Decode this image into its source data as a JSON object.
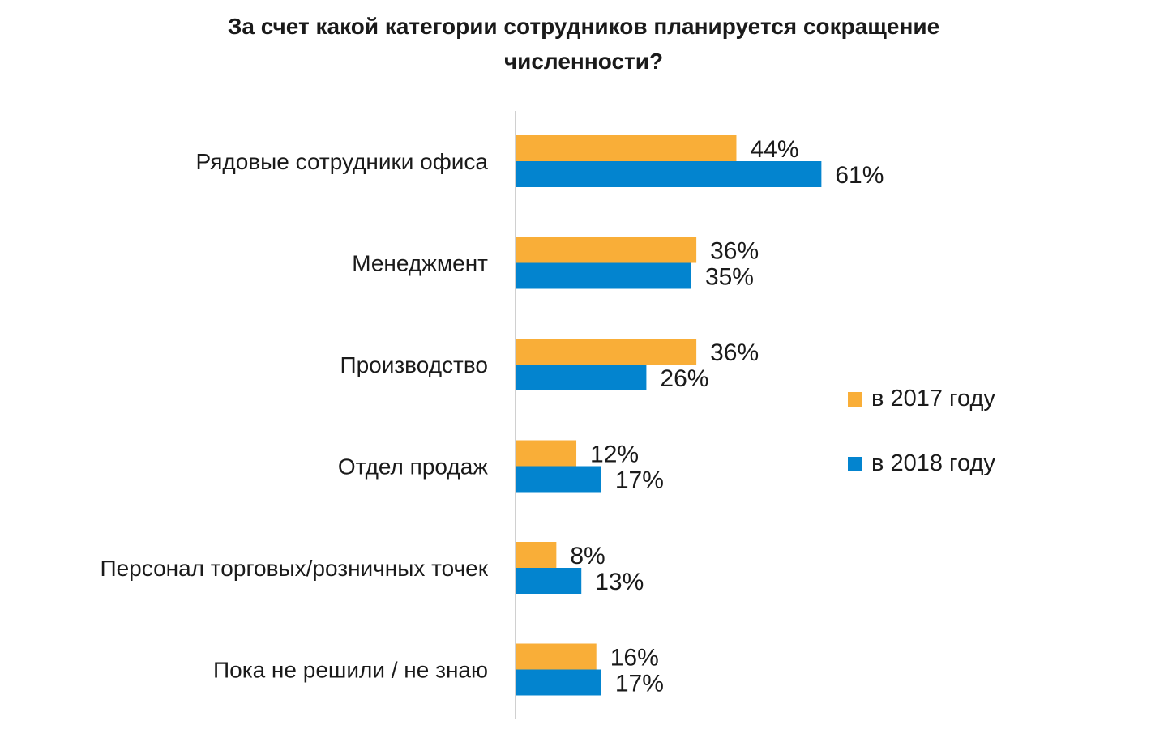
{
  "chart_data": {
    "type": "bar",
    "orientation": "horizontal",
    "title": "За счет какой категории сотрудников планируется сокращение численности?",
    "title_lines": [
      "За счет какой категории сотрудников планируется сокращение",
      "численности?"
    ],
    "categories": [
      "Рядовые сотрудники офиса",
      "Менеджмент",
      "Производство",
      "Отдел продаж",
      "Персонал торговых/розничных точек",
      "Пока не решили / не знаю"
    ],
    "series": [
      {
        "name": "в 2017 году",
        "color": "#F9AE38",
        "values": [
          44,
          36,
          36,
          12,
          8,
          16
        ]
      },
      {
        "name": "в 2018 году",
        "color": "#0384CF",
        "values": [
          61,
          35,
          26,
          17,
          13,
          17
        ]
      }
    ],
    "value_suffix": "%",
    "xlim": [
      0,
      100
    ],
    "grid": false,
    "legend_placement": "right"
  }
}
